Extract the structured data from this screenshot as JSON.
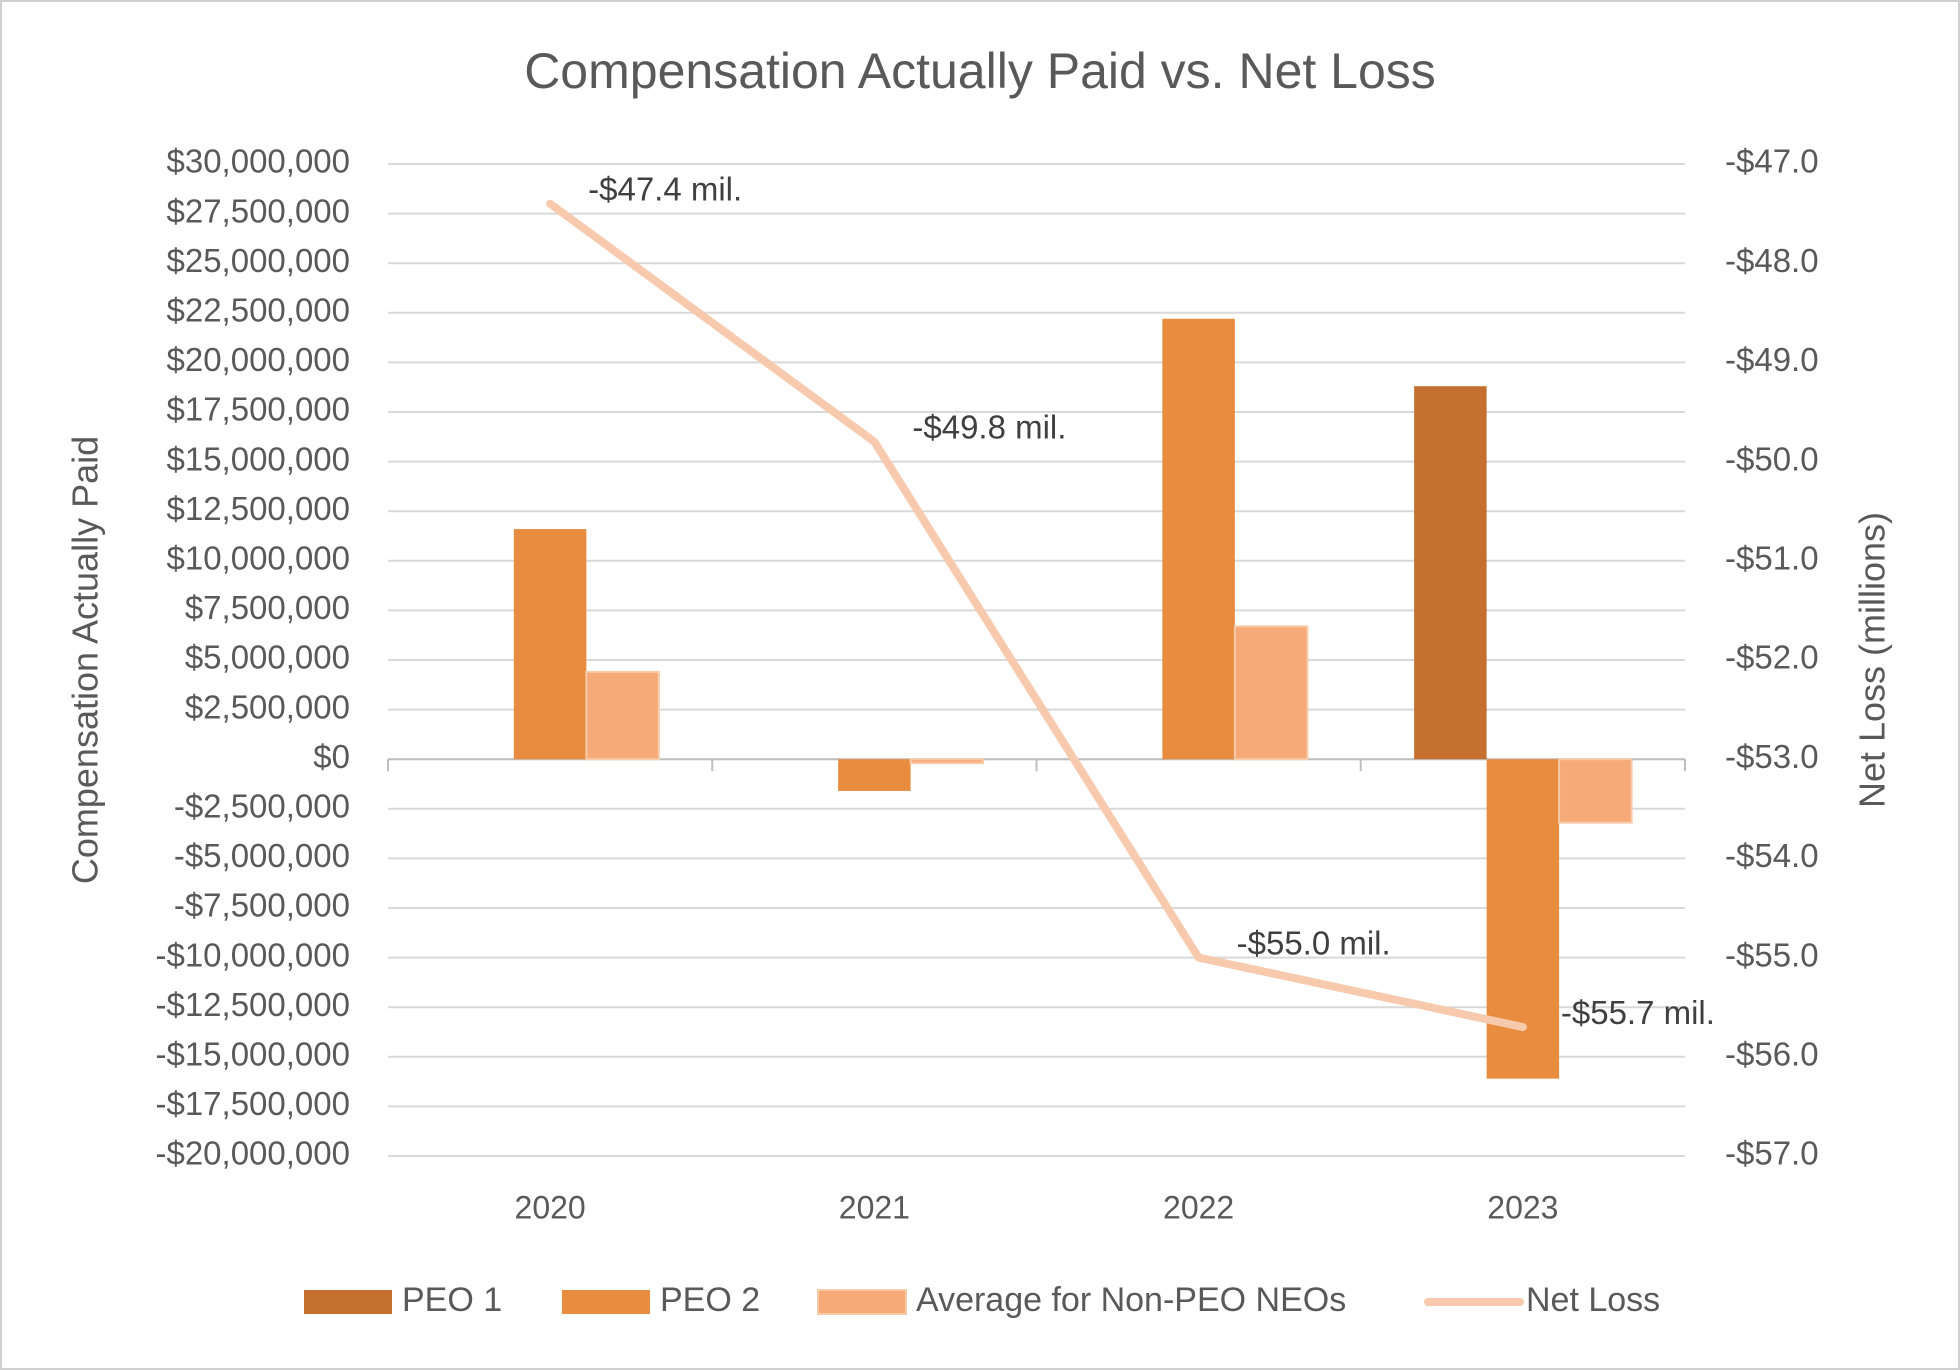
{
  "chart_data": {
    "type": "bar",
    "title": "Compensation Actually Paid vs. Net Loss",
    "y_label": "Compensation Actually Paid",
    "y2_label": "Net Loss (millions)",
    "categories": [
      "2020",
      "2021",
      "2022",
      "2023"
    ],
    "series": [
      {
        "name": "PEO 1",
        "type": "bar",
        "color": "#c5702f",
        "values": [
          null,
          null,
          null,
          18800000
        ]
      },
      {
        "name": "PEO 2",
        "type": "bar",
        "color": "#e88d3f",
        "values": [
          11600000,
          -1600000,
          22200000,
          -16100000
        ]
      },
      {
        "name": "Average for Non-PEO NEOs",
        "type": "bar",
        "color": "#f5aa78",
        "values": [
          4400000,
          -200000,
          6700000,
          -3200000
        ]
      },
      {
        "name": "Net Loss",
        "type": "line",
        "axis": "y2",
        "color": "#f8caad",
        "values": [
          -47.4,
          -49.8,
          -55.0,
          -55.7
        ],
        "value_labels": [
          "-$47.4 mil.",
          "-$49.8 mil.",
          "-$55.0 mil.",
          "-$55.7 mil."
        ]
      }
    ],
    "ylim": [
      -20000000,
      30000000
    ],
    "yticks": [
      {
        "value": 30000000,
        "label": "$30,000,000"
      },
      {
        "value": 27500000,
        "label": "$27,500,000"
      },
      {
        "value": 25000000,
        "label": "$25,000,000"
      },
      {
        "value": 22500000,
        "label": "$22,500,000"
      },
      {
        "value": 20000000,
        "label": "$20,000,000"
      },
      {
        "value": 17500000,
        "label": "$17,500,000"
      },
      {
        "value": 15000000,
        "label": "$15,000,000"
      },
      {
        "value": 12500000,
        "label": "$12,500,000"
      },
      {
        "value": 10000000,
        "label": "$10,000,000"
      },
      {
        "value": 7500000,
        "label": "$7,500,000"
      },
      {
        "value": 5000000,
        "label": "$5,000,000"
      },
      {
        "value": 2500000,
        "label": "$2,500,000"
      },
      {
        "value": 0,
        "label": "$0"
      },
      {
        "value": -2500000,
        "label": "-$2,500,000"
      },
      {
        "value": -5000000,
        "label": "-$5,000,000"
      },
      {
        "value": -7500000,
        "label": "-$7,500,000"
      },
      {
        "value": -10000000,
        "label": "-$10,000,000"
      },
      {
        "value": -12500000,
        "label": "-$12,500,000"
      },
      {
        "value": -15000000,
        "label": "-$15,000,000"
      },
      {
        "value": -17500000,
        "label": "-$17,500,000"
      },
      {
        "value": -20000000,
        "label": "-$20,000,000"
      }
    ],
    "y2lim": [
      -57,
      -47
    ],
    "y2ticks": [
      {
        "value": -47,
        "label": "-$47.0"
      },
      {
        "value": -48,
        "label": "-$48.0"
      },
      {
        "value": -49,
        "label": "-$49.0"
      },
      {
        "value": -50,
        "label": "-$50.0"
      },
      {
        "value": -51,
        "label": "-$51.0"
      },
      {
        "value": -52,
        "label": "-$52.0"
      },
      {
        "value": -53,
        "label": "-$53.0"
      },
      {
        "value": -54,
        "label": "-$54.0"
      },
      {
        "value": -55,
        "label": "-$55.0"
      },
      {
        "value": -56,
        "label": "-$56.0"
      },
      {
        "value": -57,
        "label": "-$57.0"
      }
    ],
    "grid": true,
    "legend": "bottom"
  }
}
